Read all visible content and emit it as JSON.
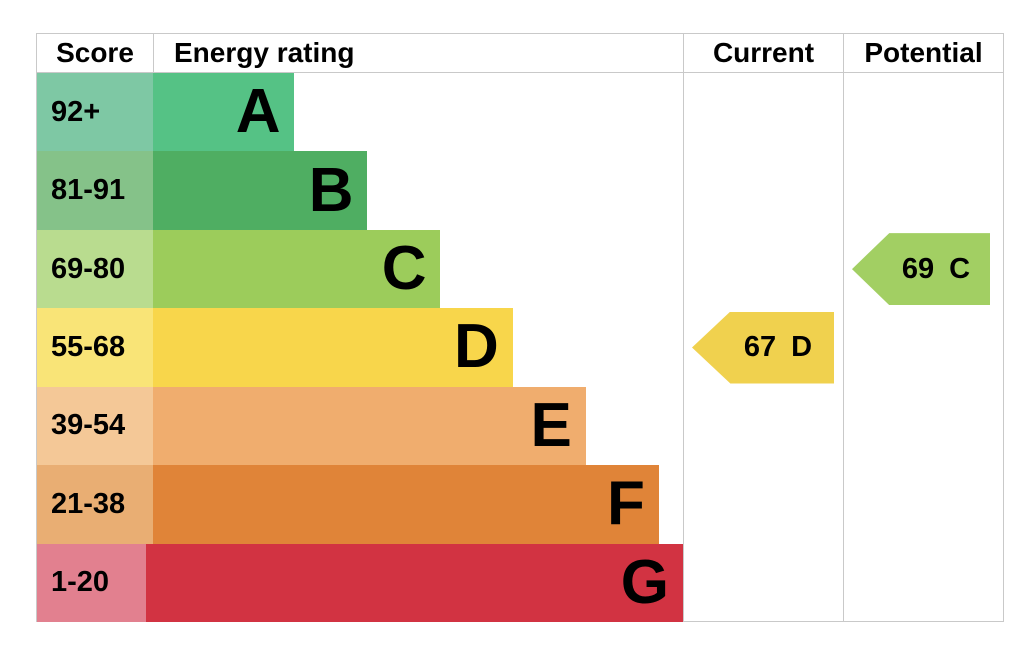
{
  "chart_data": {
    "type": "bar",
    "chart_kind": "epc-energy-rating",
    "headers": {
      "score": "Score",
      "rating": "Energy rating",
      "current": "Current",
      "potential": "Potential"
    },
    "bands": [
      {
        "score": "92+",
        "letter": "A",
        "bar_color": "#55c285",
        "score_color": "#7ec8a4",
        "width_pct": 21.9
      },
      {
        "score": "81-91",
        "letter": "B",
        "bar_color": "#4fae62",
        "score_color": "#85c289",
        "width_pct": 33.2
      },
      {
        "score": "69-80",
        "letter": "C",
        "bar_color": "#9ccc5b",
        "score_color": "#b9dc8f",
        "width_pct": 44.5
      },
      {
        "score": "55-68",
        "letter": "D",
        "bar_color": "#f8d64b",
        "score_color": "#f9e477",
        "width_pct": 55.7
      },
      {
        "score": "39-54",
        "letter": "E",
        "bar_color": "#f0ad6e",
        "score_color": "#f4c897",
        "width_pct": 67.0
      },
      {
        "score": "21-38",
        "letter": "F",
        "bar_color": "#e08438",
        "score_color": "#e9ae73",
        "width_pct": 78.3
      },
      {
        "score": "1-20",
        "letter": "G",
        "bar_color": "#d23342",
        "score_color": "#e2808f",
        "width_pct": 89.6
      }
    ],
    "current": {
      "value": 67,
      "letter": "D",
      "band_index": 3,
      "arrow_color": "#f0d14e",
      "arrow_width": 142
    },
    "potential": {
      "value": 69,
      "letter": "C",
      "band_index": 2,
      "arrow_color": "#a2cf63",
      "arrow_width": 138
    }
  }
}
